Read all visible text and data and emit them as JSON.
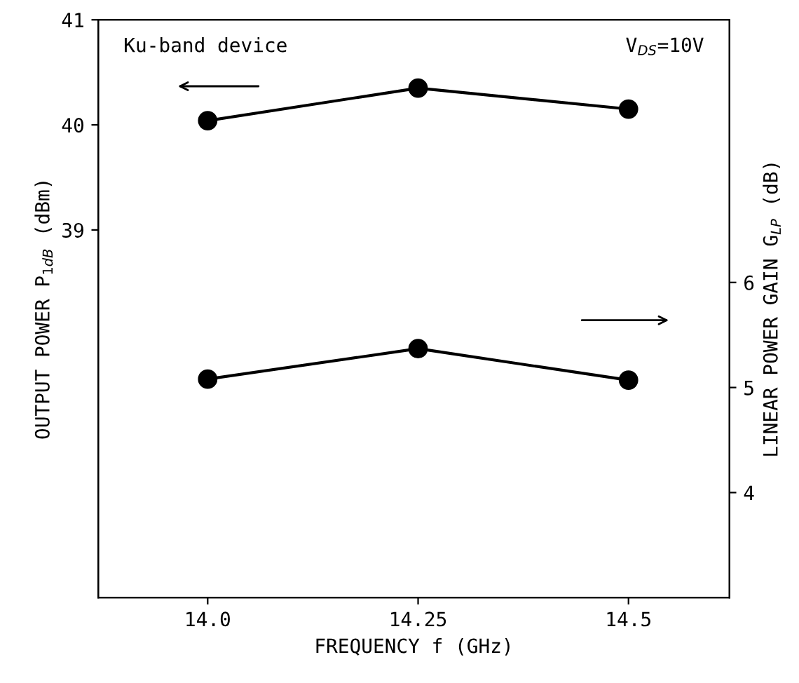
{
  "chart_data": {
    "type": "line",
    "xlabel": "FREQUENCY f (GHz)",
    "ylabel": "OUTPUT POWER P$_{1dB}$ (dBm)",
    "y2label": "LINEAR POWER GAIN G$_{LP}$ (dB)",
    "annotations": [
      "Ku-band device",
      "V$_{DS}$=10V"
    ],
    "x": [
      14.0,
      14.25,
      14.5
    ],
    "series": [
      {
        "color": "#000000",
        "values": [
          40.04,
          40.35,
          40.15
        ]
      },
      {
        "color": "#000000",
        "values": [
          5.08,
          5.37,
          5.07
        ],
        "axis": "y2"
      }
    ],
    "xlim": [
      13.87,
      14.62
    ],
    "xticks": [
      {
        "value": 14.0,
        "label": "14.0"
      },
      14.25,
      14.5
    ],
    "ylim": [
      35.5,
      41
    ],
    "yticks": [
      39,
      40,
      41
    ],
    "y2lim": [
      3,
      8.5
    ],
    "y2ticks": [
      4,
      5,
      6
    ],
    "marker": "circle",
    "line_style": "solid",
    "grid": false
  }
}
